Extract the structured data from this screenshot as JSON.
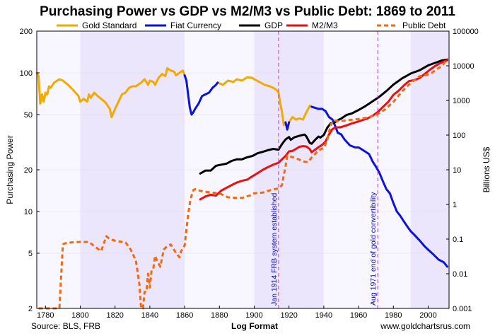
{
  "chart_data": {
    "type": "line",
    "title": "Purchasing Power vs GDP vs M2/M3 vs Public Debt: 1869 to 2011",
    "xlabel": "Log Format",
    "ylabel_left": "Purchasing Power",
    "ylabel_right": "Billions US$",
    "footer_left": "Source: BLS, FRB",
    "footer_right": "www.goldchartsrus.com",
    "x_range": [
      1775,
      2012
    ],
    "x_ticks": [
      "1780",
      "1800",
      "1820",
      "1840",
      "1860",
      "1880",
      "1900",
      "1920",
      "1940",
      "1960",
      "1980",
      "2000"
    ],
    "x_tick_values": [
      1780,
      1800,
      1820,
      1840,
      1860,
      1880,
      1900,
      1920,
      1940,
      1960,
      1980,
      2000
    ],
    "left_axis": {
      "scale": "log",
      "range": [
        2,
        200
      ],
      "ticks": [
        "2",
        "5",
        "10",
        "20",
        "50",
        "100",
        "200"
      ],
      "tick_values": [
        2,
        5,
        10,
        20,
        50,
        100,
        200
      ]
    },
    "right_axis": {
      "scale": "log",
      "range": [
        0.001,
        100000
      ],
      "ticks": [
        "0.001",
        "0.01",
        "0.1",
        "1",
        "10",
        "100",
        "1000",
        "10000",
        "100000"
      ],
      "tick_values": [
        0.001,
        0.01,
        0.1,
        1,
        10,
        100,
        1000,
        10000,
        100000
      ]
    },
    "legend_position": "top",
    "shaded_bands": [
      [
        1800,
        1860
      ],
      [
        1900,
        1940
      ],
      [
        1990,
        2012
      ]
    ],
    "annotations": [
      {
        "x": 1914,
        "text": "Jan 1914 FRB system established",
        "color": "#cc33cc"
      },
      {
        "x": 1971,
        "text": "Aug 1971 end of gold convertibility",
        "color": "#cc33cc"
      }
    ],
    "series": [
      {
        "name": "Gold Standard",
        "color": "#f2a900",
        "axis": "left",
        "style": "solid",
        "x": [
          1775,
          1776,
          1777,
          1778,
          1779,
          1780,
          1781,
          1782,
          1783,
          1785,
          1788,
          1790,
          1793,
          1796,
          1799,
          1800,
          1802,
          1804,
          1805,
          1806,
          1808,
          1810,
          1812,
          1814,
          1815,
          1817,
          1818,
          1820,
          1822,
          1824,
          1826,
          1828,
          1830,
          1832,
          1835,
          1837,
          1839,
          1840,
          1842,
          1843,
          1845,
          1847,
          1849,
          1850,
          1852,
          1854,
          1855,
          1857,
          1859,
          1860
        ],
        "y": [
          100,
          95,
          60,
          70,
          62,
          72,
          70,
          80,
          78,
          85,
          90,
          88,
          82,
          75,
          68,
          62,
          65,
          62,
          70,
          66,
          72,
          68,
          65,
          62,
          60,
          55,
          48,
          55,
          62,
          70,
          72,
          78,
          80,
          80,
          85,
          90,
          82,
          88,
          86,
          82,
          92,
          98,
          95,
          108,
          104,
          102,
          96,
          100,
          104,
          96
        ]
      },
      {
        "name": "Gold Standard",
        "color": "#f2a900",
        "axis": "left",
        "style": "solid",
        "x": [
          1879,
          1882,
          1885,
          1888,
          1890,
          1893,
          1896,
          1899,
          1900,
          1903,
          1906,
          1909,
          1911,
          1913,
          1914,
          1915,
          1916,
          1917,
          1918
        ],
        "y": [
          85,
          82,
          88,
          86,
          90,
          88,
          93,
          92,
          90,
          86,
          82,
          80,
          78,
          75,
          72,
          60,
          52,
          42,
          44
        ]
      },
      {
        "name": "Gold Standard",
        "color": "#f2a900",
        "axis": "left",
        "style": "solid",
        "x": [
          1920,
          1922,
          1924,
          1926,
          1928,
          1930,
          1932,
          1933
        ],
        "y": [
          44,
          48,
          46,
          47,
          46,
          52,
          58,
          57
        ]
      },
      {
        "name": "Fiat Currency",
        "color": "#0a12e0",
        "axis": "left",
        "style": "solid",
        "x": [
          1860,
          1861,
          1862,
          1863,
          1864,
          1865,
          1866,
          1868,
          1870,
          1872,
          1874,
          1876,
          1878,
          1879
        ],
        "y": [
          96,
          88,
          70,
          56,
          50,
          52,
          55,
          60,
          68,
          70,
          72,
          78,
          82,
          85
        ]
      },
      {
        "name": "Fiat Currency",
        "color": "#0a12e0",
        "axis": "left",
        "style": "solid",
        "x": [
          1918,
          1919,
          1920
        ],
        "y": [
          44,
          39,
          44
        ]
      },
      {
        "name": "Fiat Currency",
        "color": "#0a12e0",
        "axis": "left",
        "style": "solid",
        "x": [
          1933,
          1935,
          1937,
          1939,
          1941,
          1943,
          1945,
          1947,
          1948,
          1950,
          1952,
          1955,
          1958,
          1960,
          1962,
          1964,
          1966,
          1967,
          1968,
          1970,
          1972,
          1974,
          1976,
          1978,
          1980,
          1982,
          1984,
          1986,
          1988,
          1990,
          1992,
          1995,
          1998,
          2000,
          2003,
          2006,
          2009,
          2011
        ],
        "y": [
          57,
          56,
          55,
          55,
          53,
          48,
          46,
          40,
          37,
          36,
          33,
          30,
          29,
          29,
          28,
          27,
          26,
          24.5,
          23,
          21,
          19,
          16.5,
          14.5,
          13.5,
          11.5,
          10,
          9.3,
          8.5,
          7.8,
          7.2,
          6.8,
          6.2,
          5.6,
          5.3,
          4.9,
          4.5,
          4.3,
          4.0
        ]
      },
      {
        "name": "GDP",
        "color": "#000000",
        "axis": "right",
        "style": "solid",
        "x": [
          1869,
          1872,
          1875,
          1878,
          1881,
          1884,
          1887,
          1890,
          1893,
          1896,
          1899,
          1902,
          1905,
          1908,
          1911,
          1914,
          1916,
          1918,
          1920,
          1921,
          1923,
          1926,
          1929,
          1930,
          1932,
          1933,
          1935,
          1937,
          1938,
          1940,
          1942,
          1944,
          1946,
          1948,
          1950,
          1953,
          1956,
          1960,
          1964,
          1968,
          1972,
          1976,
          1980,
          1985,
          1990,
          1995,
          2000,
          2005,
          2008,
          2011
        ],
        "y": [
          7.8,
          9.5,
          9.5,
          13,
          14,
          15,
          18,
          20,
          20,
          23,
          25,
          30,
          33,
          37,
          40,
          38,
          55,
          75,
          88,
          73,
          86,
          96,
          104,
          91,
          59,
          56,
          73,
          91,
          85,
          101,
          163,
          219,
          225,
          267,
          300,
          380,
          420,
          530,
          690,
          940,
          1280,
          1870,
          2860,
          4340,
          5980,
          7420,
          10280,
          12620,
          14370,
          15090
        ]
      },
      {
        "name": "M2/M3",
        "color": "#e81010",
        "axis": "right",
        "style": "solid",
        "x": [
          1869,
          1872,
          1875,
          1878,
          1881,
          1884,
          1887,
          1890,
          1893,
          1896,
          1899,
          1902,
          1905,
          1908,
          1911,
          1914,
          1916,
          1918,
          1920,
          1922,
          1924,
          1926,
          1928,
          1930,
          1932,
          1933,
          1935,
          1937,
          1939,
          1941,
          1943,
          1945,
          1947,
          1950,
          1953,
          1956,
          1959,
          1962,
          1965,
          1968,
          1971,
          1974,
          1977,
          1980,
          1983,
          1986,
          1989,
          1992,
          1995,
          1998,
          2001,
          2004,
          2007,
          2010,
          2011
        ],
        "y": [
          1.4,
          1.7,
          1.9,
          1.8,
          2.5,
          3,
          3.6,
          4.3,
          4.8,
          5.2,
          6.5,
          8,
          10,
          12,
          14,
          16,
          20,
          25,
          34,
          35,
          40,
          46,
          48,
          47,
          39,
          32,
          38,
          45,
          52,
          65,
          105,
          150,
          165,
          170,
          190,
          215,
          240,
          270,
          300,
          360,
          460,
          650,
          900,
          1450,
          1900,
          2700,
          3600,
          3850,
          4400,
          5800,
          7700,
          9800,
          12000,
          13900,
          14500
        ]
      },
      {
        "name": "Public Debt",
        "color": "#f2690f",
        "axis": "right",
        "style": "dashed",
        "x": [
          1776,
          1779,
          1782,
          1785,
          1788,
          1790,
          1791,
          1795,
          1800,
          1805,
          1810,
          1812,
          1815,
          1817,
          1820,
          1823,
          1826,
          1829,
          1832,
          1834,
          1835,
          1836,
          1837,
          1838,
          1839,
          1840,
          1841,
          1842,
          1843,
          1844,
          1846,
          1848,
          1850,
          1852,
          1855,
          1857,
          1858,
          1860,
          1862,
          1863,
          1864,
          1865,
          1866,
          1870,
          1875,
          1880,
          1885,
          1890,
          1893,
          1895,
          1898,
          1900,
          1905,
          1910,
          1914,
          1916,
          1917,
          1918,
          1919,
          1921,
          1923,
          1926,
          1929,
          1931,
          1933,
          1935,
          1937,
          1940,
          1942,
          1944,
          1946,
          1948,
          1950,
          1955,
          1960,
          1965,
          1970,
          1975,
          1980,
          1985,
          1990,
          1995,
          2000,
          2002,
          2005,
          2008,
          2010,
          2011
        ],
        "y": [
          0.001,
          0.001,
          0.001,
          0.001,
          0.001,
          0.07,
          0.075,
          0.08,
          0.083,
          0.082,
          0.053,
          0.045,
          0.12,
          0.1,
          0.09,
          0.085,
          0.08,
          0.05,
          0.024,
          0.005,
          0.001,
          0.001,
          0.003,
          0.003,
          0.01,
          0.004,
          0.013,
          0.014,
          0.033,
          0.025,
          0.016,
          0.05,
          0.063,
          0.07,
          0.04,
          0.03,
          0.045,
          0.065,
          0.5,
          1.1,
          1.8,
          2.6,
          2.75,
          2.4,
          2.2,
          2.1,
          1.6,
          1.55,
          1.55,
          1.65,
          1.85,
          2.1,
          2.2,
          2.65,
          2.9,
          3.6,
          7,
          12.5,
          25.5,
          24,
          22.3,
          19.6,
          16.9,
          16.8,
          22.5,
          28.7,
          36.4,
          43,
          72,
          201,
          269,
          252,
          257,
          274,
          290,
          320,
          380,
          540,
          910,
          1820,
          3230,
          4970,
          5670,
          6230,
          7930,
          10000,
          13500,
          14800
        ]
      }
    ]
  }
}
